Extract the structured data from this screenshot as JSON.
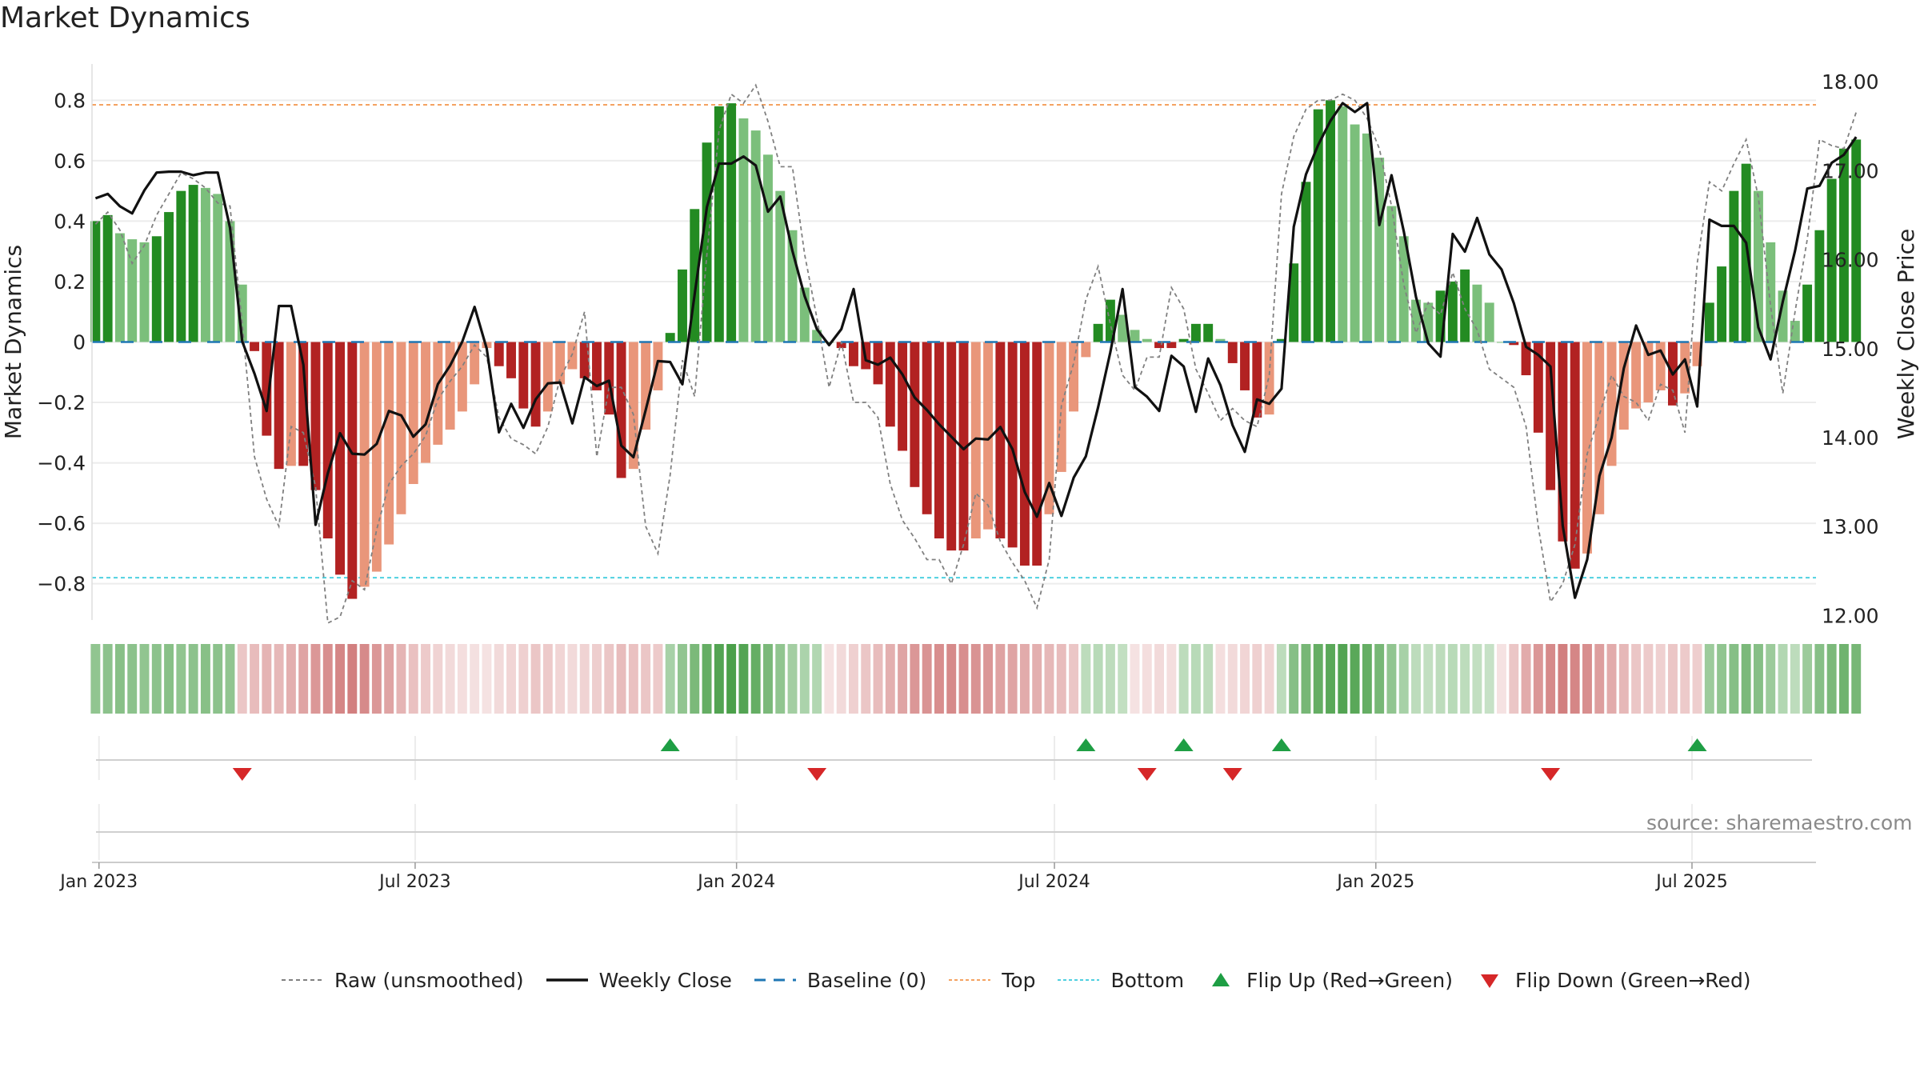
{
  "title": "Market Dynamics",
  "source": "source: sharemaestro.com",
  "legend": [
    {
      "key": "raw",
      "label": "Raw (unsmoothed)"
    },
    {
      "key": "close",
      "label": "Weekly Close"
    },
    {
      "key": "baseline",
      "label": "Baseline (0)"
    },
    {
      "key": "top",
      "label": "Top"
    },
    {
      "key": "bottom",
      "label": "Bottom"
    },
    {
      "key": "flip_up",
      "label": "Flip Up (Red→Green)"
    },
    {
      "key": "flip_down",
      "label": "Flip Down (Green→Red)"
    }
  ],
  "colors": {
    "green_strong": "#238b22",
    "green_light": "#7bbf7b",
    "red_strong": "#b22222",
    "red_light": "#e9967a",
    "top_line": "#f4a261",
    "bottom_line": "#4fd0e0",
    "baseline": "#1f77b4",
    "close_line": "#111111",
    "raw_line": "#808080",
    "flip_up": "#1e9e44",
    "flip_down": "#d62728"
  },
  "chart_data": {
    "type": "bar",
    "title": "Market Dynamics",
    "ylabel": "Market Dynamics",
    "y2label": "Weekly Close Price",
    "ylim": [
      -0.92,
      0.92
    ],
    "y2lim": [
      11.95,
      18.2
    ],
    "yticks": [
      0.8,
      0.6,
      0.4,
      0.2,
      0,
      -0.2,
      -0.4,
      -0.6,
      -0.8
    ],
    "ytick_labels": [
      "0.8",
      "0.6",
      "0.4",
      "0.2",
      "0",
      "−0.2",
      "−0.4",
      "−0.6",
      "−0.8"
    ],
    "y2ticks": [
      18,
      17,
      16,
      15,
      14,
      13,
      12
    ],
    "y2tick_labels": [
      "18.00",
      "17.00",
      "16.00",
      "15.00",
      "14.00",
      "13.00",
      "12.00"
    ],
    "xlim": [
      "2022-12-28",
      "2025-09-10"
    ],
    "x_start": "2022-12-30",
    "x_step_days": 7,
    "xticks": [
      "2023-01-01",
      "2023-07-01",
      "2024-01-01",
      "2024-07-01",
      "2025-01-01",
      "2025-07-01"
    ],
    "xtick_labels": [
      "Jan 2023",
      "Jul 2023",
      "Jan 2024",
      "Jul 2024",
      "Jan 2025",
      "Jul 2025"
    ],
    "top": 0.785,
    "bottom": -0.78,
    "baseline": 0,
    "grid": true,
    "legend_position": "bottom",
    "series": [
      {
        "name": "Market Dynamics",
        "values": [
          0.4,
          0.42,
          0.36,
          0.34,
          0.33,
          0.35,
          0.43,
          0.5,
          0.52,
          0.51,
          0.49,
          0.4,
          0.19,
          -0.03,
          -0.31,
          -0.42,
          -0.41,
          -0.41,
          -0.49,
          -0.65,
          -0.77,
          -0.85,
          -0.81,
          -0.76,
          -0.67,
          -0.57,
          -0.47,
          -0.4,
          -0.34,
          -0.29,
          -0.23,
          -0.14,
          -0.02,
          -0.08,
          -0.12,
          -0.22,
          -0.28,
          -0.23,
          -0.14,
          -0.09,
          -0.12,
          -0.16,
          -0.24,
          -0.45,
          -0.42,
          -0.29,
          -0.16,
          0.03,
          0.24,
          0.44,
          0.66,
          0.78,
          0.79,
          0.74,
          0.7,
          0.62,
          0.5,
          0.37,
          0.18,
          0.04,
          0,
          -0.02,
          -0.08,
          -0.09,
          -0.14,
          -0.28,
          -0.36,
          -0.48,
          -0.57,
          -0.65,
          -0.69,
          -0.69,
          -0.65,
          -0.62,
          -0.65,
          -0.68,
          -0.74,
          -0.74,
          -0.57,
          -0.43,
          -0.23,
          -0.05,
          0.06,
          0.14,
          0.09,
          0.04,
          0.01,
          -0.02,
          -0.02,
          0.01,
          0.06,
          0.06,
          0.01,
          -0.07,
          -0.16,
          -0.25,
          -0.24,
          0.01,
          0.26,
          0.53,
          0.77,
          0.8,
          0.78,
          0.72,
          0.69,
          0.61,
          0.45,
          0.35,
          0.14,
          0.13,
          0.17,
          0.2,
          0.24,
          0.19,
          0.13,
          0,
          -0.01,
          -0.11,
          -0.3,
          -0.49,
          -0.66,
          -0.75,
          -0.7,
          -0.57,
          -0.41,
          -0.29,
          -0.22,
          -0.2,
          -0.16,
          -0.21,
          -0.17,
          -0.08,
          0.13,
          0.25,
          0.5,
          0.59,
          0.5,
          0.33,
          0.17,
          0.07,
          0.19,
          0.37,
          0.54,
          0.64,
          0.67
        ]
      },
      {
        "name": "Raw (unsmoothed)",
        "values": [
          0.39,
          0.43,
          0.37,
          0.26,
          0.32,
          0.42,
          0.49,
          0.56,
          0.54,
          0.51,
          0.46,
          0.45,
          0.06,
          -0.38,
          -0.52,
          -0.61,
          -0.28,
          -0.3,
          -0.48,
          -0.93,
          -0.91,
          -0.79,
          -0.82,
          -0.62,
          -0.47,
          -0.41,
          -0.37,
          -0.31,
          -0.19,
          -0.13,
          -0.08,
          -0.01,
          -0.05,
          -0.25,
          -0.32,
          -0.34,
          -0.37,
          -0.28,
          -0.12,
          -0.04,
          0.1,
          -0.38,
          -0.15,
          -0.15,
          -0.24,
          -0.61,
          -0.7,
          -0.44,
          -0.06,
          -0.18,
          0.29,
          0.7,
          0.82,
          0.79,
          0.85,
          0.73,
          0.58,
          0.58,
          0.29,
          0.08,
          -0.15,
          0.0,
          -0.2,
          -0.2,
          -0.25,
          -0.47,
          -0.59,
          -0.65,
          -0.72,
          -0.72,
          -0.8,
          -0.67,
          -0.5,
          -0.54,
          -0.66,
          -0.73,
          -0.79,
          -0.88,
          -0.72,
          -0.21,
          -0.07,
          0.14,
          0.25,
          0.06,
          -0.11,
          -0.16,
          -0.05,
          -0.05,
          0.18,
          0.11,
          -0.09,
          -0.17,
          -0.26,
          -0.22,
          -0.26,
          -0.28,
          -0.11,
          0.49,
          0.68,
          0.77,
          0.8,
          0.8,
          0.82,
          0.8,
          0.74,
          0.64,
          0.45,
          0.19,
          0.03,
          0.13,
          0.09,
          0.23,
          0.11,
          0.04,
          -0.09,
          -0.12,
          -0.15,
          -0.28,
          -0.61,
          -0.86,
          -0.8,
          -0.67,
          -0.37,
          -0.24,
          -0.11,
          -0.18,
          -0.2,
          -0.26,
          -0.14,
          -0.16,
          -0.3,
          0.26,
          0.53,
          0.5,
          0.59,
          0.67,
          0.48,
          0.12,
          -0.17,
          0.1,
          0.34,
          0.67,
          0.65,
          0.64,
          0.76
        ]
      },
      {
        "name": "Weekly Close",
        "axis": "right",
        "values": [
          16.69,
          16.74,
          16.6,
          16.52,
          16.78,
          16.98,
          16.99,
          16.99,
          16.95,
          16.98,
          16.98,
          16.36,
          15.08,
          14.72,
          14.3,
          15.48,
          15.48,
          14.82,
          13.02,
          13.6,
          14.05,
          13.82,
          13.81,
          13.93,
          14.3,
          14.25,
          14.01,
          14.15,
          14.6,
          14.81,
          15.08,
          15.47,
          15.0,
          14.06,
          14.38,
          14.11,
          14.43,
          14.61,
          14.62,
          14.16,
          14.68,
          14.58,
          14.64,
          13.91,
          13.78,
          14.31,
          14.86,
          14.85,
          14.6,
          15.61,
          16.59,
          17.08,
          17.08,
          17.16,
          17.06,
          16.54,
          16.71,
          16.1,
          15.59,
          15.22,
          15.04,
          15.22,
          15.67,
          14.87,
          14.82,
          14.9,
          14.71,
          14.45,
          14.31,
          14.15,
          14.01,
          13.87,
          13.99,
          13.98,
          14.12,
          13.87,
          13.39,
          13.11,
          13.49,
          13.12,
          13.55,
          13.79,
          14.34,
          14.96,
          15.67,
          14.57,
          14.46,
          14.3,
          14.92,
          14.8,
          14.29,
          14.89,
          14.59,
          14.14,
          13.84,
          14.43,
          14.38,
          14.55,
          16.37,
          16.96,
          17.29,
          17.56,
          17.76,
          17.66,
          17.76,
          16.39,
          16.95,
          16.32,
          15.58,
          15.06,
          14.91,
          16.29,
          16.09,
          16.47,
          16.06,
          15.89,
          15.51,
          15.02,
          14.93,
          14.8,
          13.01,
          12.2,
          12.63,
          13.57,
          14.0,
          14.78,
          15.26,
          14.93,
          14.98,
          14.71,
          14.88,
          14.35,
          16.45,
          16.38,
          16.38,
          16.19,
          15.24,
          14.88,
          15.53,
          16.1,
          16.8,
          16.83,
          17.09,
          17.18,
          17.38
        ]
      }
    ],
    "heat_strip": [
      0.5,
      0.52,
      0.54,
      0.52,
      0.5,
      0.52,
      0.54,
      0.5,
      0.52,
      0.54,
      0.52,
      0.5,
      -0.3,
      -0.35,
      -0.4,
      -0.38,
      -0.42,
      -0.48,
      -0.55,
      -0.6,
      -0.65,
      -0.68,
      -0.62,
      -0.55,
      -0.48,
      -0.4,
      -0.33,
      -0.28,
      -0.24,
      -0.2,
      -0.18,
      -0.16,
      -0.15,
      -0.2,
      -0.22,
      -0.25,
      -0.3,
      -0.28,
      -0.22,
      -0.2,
      -0.24,
      -0.26,
      -0.3,
      -0.35,
      -0.33,
      -0.3,
      -0.28,
      0.4,
      0.5,
      0.6,
      0.7,
      0.78,
      0.82,
      0.78,
      0.7,
      0.6,
      0.5,
      0.42,
      0.38,
      0.35,
      -0.15,
      -0.2,
      -0.25,
      -0.3,
      -0.35,
      -0.42,
      -0.48,
      -0.55,
      -0.58,
      -0.6,
      -0.62,
      -0.6,
      -0.58,
      -0.55,
      -0.5,
      -0.48,
      -0.45,
      -0.42,
      -0.38,
      -0.35,
      -0.3,
      0.3,
      0.32,
      0.3,
      0.28,
      -0.15,
      -0.18,
      -0.2,
      -0.18,
      0.3,
      0.32,
      0.3,
      -0.18,
      -0.2,
      -0.22,
      -0.25,
      -0.22,
      0.3,
      0.55,
      0.62,
      0.7,
      0.75,
      0.78,
      0.75,
      0.7,
      0.62,
      0.5,
      0.4,
      0.3,
      0.28,
      0.3,
      0.32,
      0.3,
      0.28,
      0.26,
      -0.15,
      -0.3,
      -0.45,
      -0.55,
      -0.62,
      -0.68,
      -0.65,
      -0.6,
      -0.52,
      -0.45,
      -0.38,
      -0.3,
      -0.28,
      -0.25,
      -0.3,
      -0.28,
      -0.26,
      0.45,
      0.5,
      0.55,
      0.6,
      0.55,
      0.45,
      0.35,
      0.3,
      0.45,
      0.55,
      0.6,
      0.65,
      0.62
    ],
    "flip_up_index": [
      47,
      81,
      89,
      97,
      131
    ],
    "flip_down_index": [
      12,
      59,
      86,
      93,
      119
    ]
  }
}
